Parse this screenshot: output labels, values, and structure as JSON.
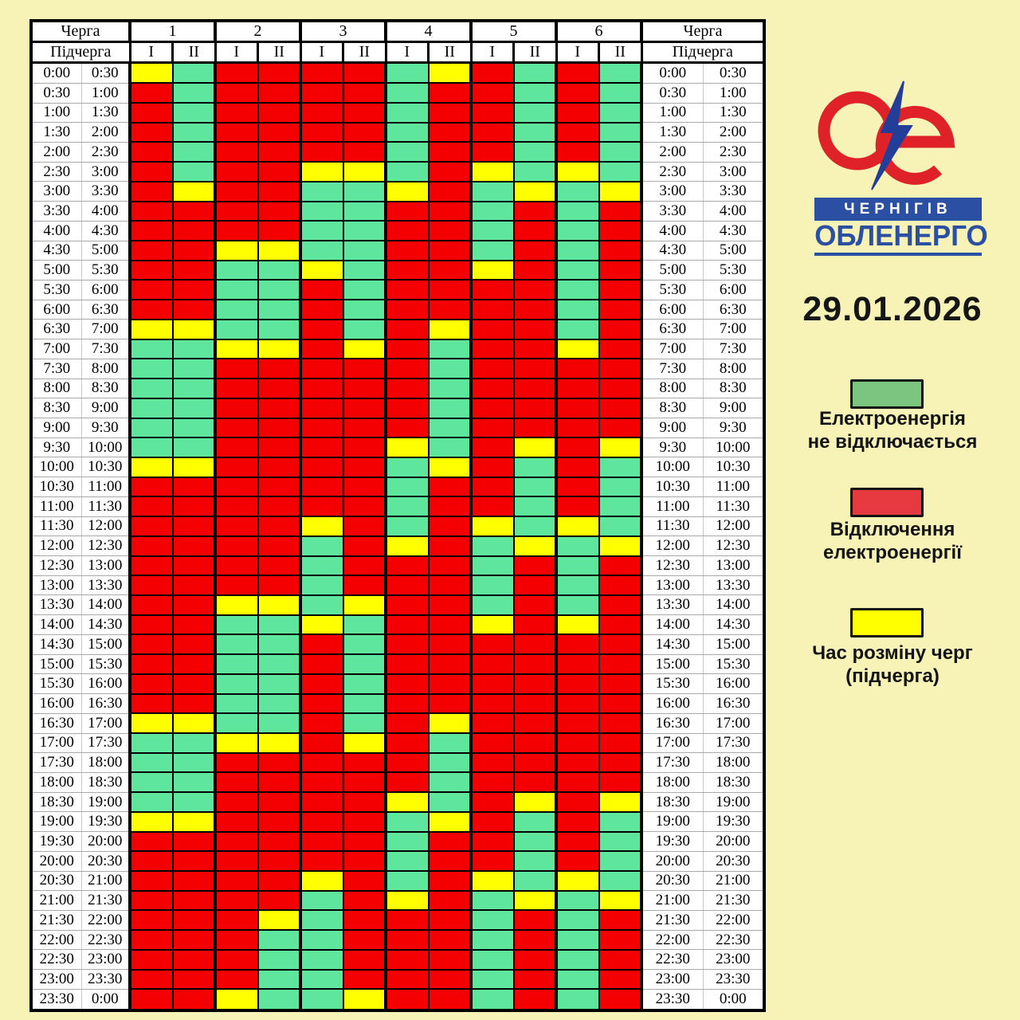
{
  "chart_data": {
    "type": "heatmap",
    "title": "29.01.2026",
    "header": {
      "queue_label": "Черга",
      "subqueue_label": "Підчерга",
      "queues": [
        "1",
        "2",
        "3",
        "4",
        "5",
        "6"
      ],
      "subqueues": [
        "I",
        "II"
      ]
    },
    "column_keys": [
      "1-I",
      "1-II",
      "2-I",
      "2-II",
      "3-I",
      "3-II",
      "4-I",
      "4-II",
      "5-I",
      "5-II",
      "6-I",
      "6-II"
    ],
    "cell_colors": {
      "G": "#5FE69D",
      "R": "#F50000",
      "Y": "#FFFF00"
    },
    "cell_meanings": {
      "G": "Електроенергія не відключається",
      "R": "Відключення електроенергії",
      "Y": "Час розміну черг (підчерга)"
    },
    "rows": [
      {
        "start": "0:00",
        "end": "0:30",
        "cells": "YGRRRRGYRGRG"
      },
      {
        "start": "0:30",
        "end": "1:00",
        "cells": "RGRRRRGRRGRG"
      },
      {
        "start": "1:00",
        "end": "1:30",
        "cells": "RGRRRRGRRGRG"
      },
      {
        "start": "1:30",
        "end": "2:00",
        "cells": "RGRRRRGRRGRG"
      },
      {
        "start": "2:00",
        "end": "2:30",
        "cells": "RGRRRRGRRGRG"
      },
      {
        "start": "2:30",
        "end": "3:00",
        "cells": "RGRRYYGRYGYG"
      },
      {
        "start": "3:00",
        "end": "3:30",
        "cells": "RYRRGGYRGYGY"
      },
      {
        "start": "3:30",
        "end": "4:00",
        "cells": "RRRRGGRRGRGR"
      },
      {
        "start": "4:00",
        "end": "4:30",
        "cells": "RRRRGGRRGRGR"
      },
      {
        "start": "4:30",
        "end": "5:00",
        "cells": "RRYYGGRRGRGR"
      },
      {
        "start": "5:00",
        "end": "5:30",
        "cells": "RRGGYGRRYRGR"
      },
      {
        "start": "5:30",
        "end": "6:00",
        "cells": "RRGGRGRRRRGR"
      },
      {
        "start": "6:00",
        "end": "6:30",
        "cells": "RRGGRGRRRRGR"
      },
      {
        "start": "6:30",
        "end": "7:00",
        "cells": "YYGGRGRYRRGR"
      },
      {
        "start": "7:00",
        "end": "7:30",
        "cells": "GGYYRYRGRRYR"
      },
      {
        "start": "7:30",
        "end": "8:00",
        "cells": "GGRRRRRGRRRR"
      },
      {
        "start": "8:00",
        "end": "8:30",
        "cells": "GGRRRRRGRRRR"
      },
      {
        "start": "8:30",
        "end": "9:00",
        "cells": "GGRRRRRGRRRR"
      },
      {
        "start": "9:00",
        "end": "9:30",
        "cells": "GGRRRRRGRRRR"
      },
      {
        "start": "9:30",
        "end": "10:00",
        "cells": "GGRRRRYGRYRY"
      },
      {
        "start": "10:00",
        "end": "10:30",
        "cells": "YYRRRRGYRGRG"
      },
      {
        "start": "10:30",
        "end": "11:00",
        "cells": "RRRRRRGRRGRG"
      },
      {
        "start": "11:00",
        "end": "11:30",
        "cells": "RRRRRRGRRGRG"
      },
      {
        "start": "11:30",
        "end": "12:00",
        "cells": "RRRRYRGRYGYG"
      },
      {
        "start": "12:00",
        "end": "12:30",
        "cells": "RRRRGRYRGYGY"
      },
      {
        "start": "12:30",
        "end": "13:00",
        "cells": "RRRRGRRRGRGR"
      },
      {
        "start": "13:00",
        "end": "13:30",
        "cells": "RRRRGRRRGRGR"
      },
      {
        "start": "13:30",
        "end": "14:00",
        "cells": "RRYYGYRRGRGR"
      },
      {
        "start": "14:00",
        "end": "14:30",
        "cells": "RRGGYGRRYRYR"
      },
      {
        "start": "14:30",
        "end": "15:00",
        "cells": "RRGGRGRRRRRR"
      },
      {
        "start": "15:00",
        "end": "15:30",
        "cells": "RRGGRGRRRRRR"
      },
      {
        "start": "15:30",
        "end": "16:00",
        "cells": "RRGGRGRRRRRR"
      },
      {
        "start": "16:00",
        "end": "16:30",
        "cells": "RRGGRGRRRRRR"
      },
      {
        "start": "16:30",
        "end": "17:00",
        "cells": "YYGGRGRYRRRR"
      },
      {
        "start": "17:00",
        "end": "17:30",
        "cells": "GGYYRYRGRRRR"
      },
      {
        "start": "17:30",
        "end": "18:00",
        "cells": "GGRRRRRGRRRR"
      },
      {
        "start": "18:00",
        "end": "18:30",
        "cells": "GGRRRRRGRRRR"
      },
      {
        "start": "18:30",
        "end": "19:00",
        "cells": "GGRRRRYGRYRY"
      },
      {
        "start": "19:00",
        "end": "19:30",
        "cells": "YYRRRRGYRGRG"
      },
      {
        "start": "19:30",
        "end": "20:00",
        "cells": "RRRRRRGRRGRG"
      },
      {
        "start": "20:00",
        "end": "20:30",
        "cells": "RRRRRRGRRGRG"
      },
      {
        "start": "20:30",
        "end": "21:00",
        "cells": "RRRRYRGRYGYG"
      },
      {
        "start": "21:00",
        "end": "21:30",
        "cells": "RRRRGRYRGYGY"
      },
      {
        "start": "21:30",
        "end": "22:00",
        "cells": "RRRYGRRRGRGR"
      },
      {
        "start": "22:00",
        "end": "22:30",
        "cells": "RRRGGRRRGRGR"
      },
      {
        "start": "22:30",
        "end": "23:00",
        "cells": "RRRGGRRRGRGR"
      },
      {
        "start": "23:00",
        "end": "23:30",
        "cells": "RRRGGRRRGRGR"
      },
      {
        "start": "23:30",
        "end": "0:00",
        "cells": "RRYGGYRRGRGR"
      }
    ],
    "legend": [
      {
        "key": "G",
        "swatch": "#7CC57E",
        "label_line1": "Електроенергія",
        "label_line2": "не відключається"
      },
      {
        "key": "R",
        "swatch": "#E63940",
        "label_line1": "Відключення",
        "label_line2": "електроенергії"
      },
      {
        "key": "Y",
        "swatch": "#FFFF00",
        "label_line1": "Час розміну черг",
        "label_line2": "(підчерга)"
      }
    ],
    "legend_position": "right"
  },
  "logo": {
    "city": "ЧЕРНІГІВ",
    "company": "ОБЛЕНЕРГО",
    "red": "#DE2227",
    "blue": "#2B4FA3"
  },
  "page": {
    "background": "#F7F2B5"
  }
}
